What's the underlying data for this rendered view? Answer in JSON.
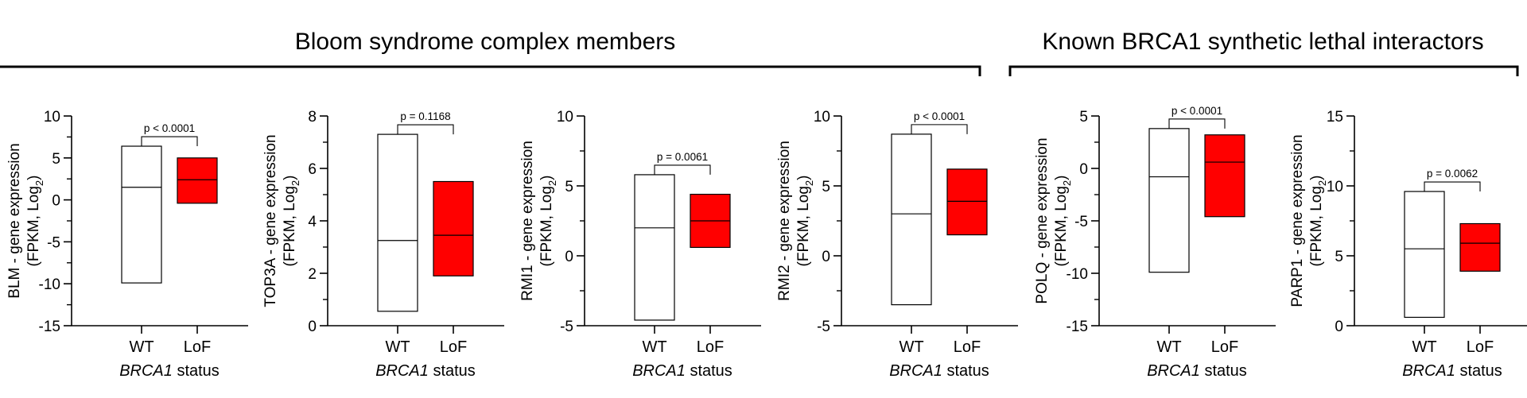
{
  "groups": [
    {
      "title": "Bloom syndrome complex members"
    },
    {
      "title": "Known BRCA1 synthetic lethal interactors"
    }
  ],
  "chart_data": [
    {
      "type": "box",
      "gene": "BLM",
      "ylabel_line1": "BLM - gene expression",
      "ylabel_line2_prefix": "(FPKM, Log",
      "ylabel_sub": "2",
      "ylabel_line2_suffix": ")",
      "xlabel_italic": "BRCA1",
      "xlabel_rest": " status",
      "categories": [
        "WT",
        "LoF"
      ],
      "ylim": [
        -15,
        10
      ],
      "yticks": [
        -15,
        -10,
        -5,
        0,
        5,
        10
      ],
      "yticks_label": [
        "-15",
        "-10",
        "-5",
        "0",
        "5",
        "10"
      ],
      "boxes": [
        {
          "category": "WT",
          "min": -9.9,
          "median": 1.5,
          "max": 6.4,
          "fill": "#ffffff"
        },
        {
          "category": "LoF",
          "min": -0.4,
          "median": 2.4,
          "max": 5.0,
          "fill": "#ff0000"
        }
      ],
      "pvalue": "p < 0.0001"
    },
    {
      "type": "box",
      "gene": "TOP3A",
      "ylabel_line1": "TOP3A - gene expression",
      "ylabel_line2_prefix": "(FPKM, Log",
      "ylabel_sub": "2",
      "ylabel_line2_suffix": ")",
      "xlabel_italic": "BRCA1",
      "xlabel_rest": " status",
      "categories": [
        "WT",
        "LoF"
      ],
      "ylim": [
        0,
        8
      ],
      "yticks": [
        0,
        2,
        4,
        6,
        8
      ],
      "yticks_label": [
        "0",
        "2",
        "4",
        "6",
        "8"
      ],
      "boxes": [
        {
          "category": "WT",
          "min": 0.55,
          "median": 3.25,
          "max": 7.3,
          "fill": "#ffffff"
        },
        {
          "category": "LoF",
          "min": 1.9,
          "median": 3.45,
          "max": 5.5,
          "fill": "#ff0000"
        }
      ],
      "pvalue": "p = 0.1168"
    },
    {
      "type": "box",
      "gene": "RMI1",
      "ylabel_line1": "RMI1 - gene expression",
      "ylabel_line2_prefix": "(FPKM, Log",
      "ylabel_sub": "2",
      "ylabel_line2_suffix": ")",
      "xlabel_italic": "BRCA1",
      "xlabel_rest": " status",
      "categories": [
        "WT",
        "LoF"
      ],
      "ylim": [
        -5,
        10
      ],
      "yticks": [
        -5,
        0,
        5,
        10
      ],
      "yticks_label": [
        "-5",
        "0",
        "5",
        "10"
      ],
      "boxes": [
        {
          "category": "WT",
          "min": -4.6,
          "median": 2.0,
          "max": 5.8,
          "fill": "#ffffff"
        },
        {
          "category": "LoF",
          "min": 0.6,
          "median": 2.5,
          "max": 4.4,
          "fill": "#ff0000"
        }
      ],
      "pvalue": "p = 0.0061"
    },
    {
      "type": "box",
      "gene": "RMI2",
      "ylabel_line1": "RMI2 - gene expression",
      "ylabel_line2_prefix": "(FPKM, Log",
      "ylabel_sub": "2",
      "ylabel_line2_suffix": ")",
      "xlabel_italic": "BRCA1",
      "xlabel_rest": " status",
      "categories": [
        "WT",
        "LoF"
      ],
      "ylim": [
        -5,
        10
      ],
      "yticks": [
        -5,
        0,
        5,
        10
      ],
      "yticks_label": [
        "-5",
        "0",
        "5",
        "10"
      ],
      "boxes": [
        {
          "category": "WT",
          "min": -3.5,
          "median": 3.0,
          "max": 8.7,
          "fill": "#ffffff"
        },
        {
          "category": "LoF",
          "min": 1.5,
          "median": 3.9,
          "max": 6.2,
          "fill": "#ff0000"
        }
      ],
      "pvalue": "p < 0.0001"
    },
    {
      "type": "box",
      "gene": "POLQ",
      "ylabel_line1": "POLQ - gene expression",
      "ylabel_line2_prefix": "(FPKM, Log",
      "ylabel_sub": "2",
      "ylabel_line2_suffix": ")",
      "xlabel_italic": "BRCA1",
      "xlabel_rest": " status",
      "categories": [
        "WT",
        "LoF"
      ],
      "ylim": [
        -15,
        5
      ],
      "yticks": [
        -15,
        -10,
        -5,
        0,
        5
      ],
      "yticks_label": [
        "-15",
        "-10",
        "-5",
        "0",
        "5"
      ],
      "boxes": [
        {
          "category": "WT",
          "min": -9.9,
          "median": -0.8,
          "max": 3.8,
          "fill": "#ffffff"
        },
        {
          "category": "LoF",
          "min": -4.6,
          "median": 0.6,
          "max": 3.2,
          "fill": "#ff0000"
        }
      ],
      "pvalue": "p < 0.0001"
    },
    {
      "type": "box",
      "gene": "PARP1",
      "ylabel_line1": "PARP1 - gene expression",
      "ylabel_line2_prefix": "(FPKM, Log",
      "ylabel_sub": "2",
      "ylabel_line2_suffix": ")",
      "xlabel_italic": "BRCA1",
      "xlabel_rest": " status",
      "categories": [
        "WT",
        "LoF"
      ],
      "ylim": [
        0,
        15
      ],
      "yticks": [
        0,
        5,
        10,
        15
      ],
      "yticks_label": [
        "0",
        "5",
        "10",
        "15"
      ],
      "boxes": [
        {
          "category": "WT",
          "min": 0.6,
          "median": 5.5,
          "max": 9.6,
          "fill": "#ffffff"
        },
        {
          "category": "LoF",
          "min": 3.9,
          "median": 5.9,
          "max": 7.3,
          "fill": "#ff0000"
        }
      ],
      "pvalue": "p = 0.0062"
    }
  ]
}
